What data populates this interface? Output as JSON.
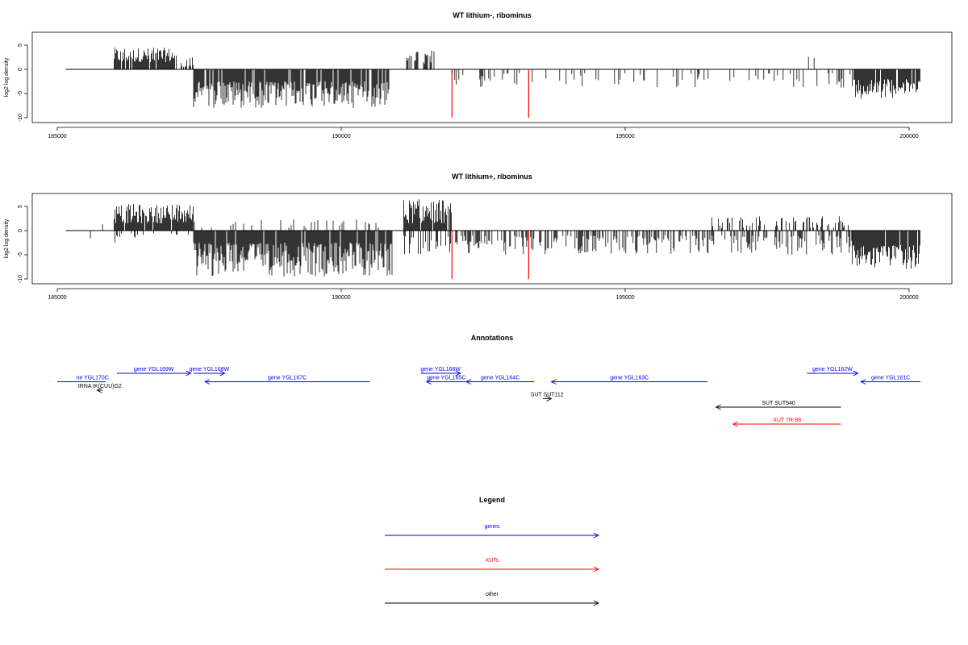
{
  "chart_data": [
    {
      "type": "bar",
      "title": "WT lithium-, ribominus",
      "ylabel": "log2 log density",
      "xlabel": "",
      "xlim": [
        185000,
        200000
      ],
      "ylim": [
        -10,
        5
      ],
      "x_ticks": [
        185000,
        190000,
        195000,
        200000
      ],
      "y_ticks": [
        5,
        0,
        -5,
        -10
      ],
      "highlight_color": "#ff0000",
      "highlights": [
        191950,
        193300
      ],
      "segments": [
        {
          "start": 186000,
          "end": 187100,
          "min": 1.5,
          "max": 4.5,
          "density": 0.85
        },
        {
          "start": 187150,
          "end": 187400,
          "min": 0.5,
          "max": 2.5,
          "density": 0.6
        },
        {
          "start": 187400,
          "end": 190850,
          "min": -8.0,
          "max": -2.5,
          "density": 0.9
        },
        {
          "start": 191150,
          "end": 191700,
          "min": 1.0,
          "max": 4.0,
          "density": 0.5
        },
        {
          "start": 191900,
          "end": 199000,
          "min": -4.0,
          "max": -0.8,
          "density": 0.12
        },
        {
          "start": 198100,
          "end": 199000,
          "min": 0.8,
          "max": 3.0,
          "density": 0.08
        },
        {
          "start": 199000,
          "end": 200200,
          "min": -6.0,
          "max": -2.0,
          "density": 0.9
        }
      ]
    },
    {
      "type": "bar",
      "title": "WT lithium+, ribominus",
      "ylabel": "log2 log density",
      "xlabel": "",
      "xlim": [
        185000,
        200000
      ],
      "ylim": [
        -10,
        5
      ],
      "x_ticks": [
        185000,
        190000,
        195000,
        200000
      ],
      "y_ticks": [
        5,
        0,
        -5,
        -10
      ],
      "highlight_color": "#ff0000",
      "highlights": [
        191950,
        193300
      ],
      "segments": [
        {
          "start": 185300,
          "end": 185950,
          "min": -2.0,
          "max": 1.5,
          "density": 0.06
        },
        {
          "start": 186000,
          "end": 187400,
          "min": 1.5,
          "max": 5.5,
          "density": 0.95
        },
        {
          "start": 186000,
          "end": 187400,
          "min": -2.5,
          "max": -0.5,
          "density": 0.2
        },
        {
          "start": 187400,
          "end": 190900,
          "min": -9.5,
          "max": -2.5,
          "density": 0.95
        },
        {
          "start": 187400,
          "end": 190900,
          "min": 0.5,
          "max": 2.5,
          "density": 0.15
        },
        {
          "start": 191100,
          "end": 191950,
          "min": 1.5,
          "max": 6.5,
          "density": 0.95
        },
        {
          "start": 191100,
          "end": 191950,
          "min": -5.0,
          "max": -1.0,
          "density": 0.5
        },
        {
          "start": 192000,
          "end": 199000,
          "min": -5.0,
          "max": -1.0,
          "density": 0.45
        },
        {
          "start": 196500,
          "end": 199000,
          "min": 0.5,
          "max": 3.0,
          "density": 0.3
        },
        {
          "start": 199000,
          "end": 200200,
          "min": -8.0,
          "max": -3.0,
          "density": 0.95
        }
      ]
    }
  ],
  "annotations": {
    "title": "Annotations",
    "genes_color": "#0000ff",
    "xut_color": "#ff0000",
    "other_color": "#000000",
    "features": [
      {
        "label": "ne YGL170C",
        "color": "#0000ff",
        "row": 1,
        "start": 185000,
        "end": 185850,
        "dir": "none",
        "label_pos": 185620
      },
      {
        "label": "gene YGL169W",
        "color": "#0000ff",
        "row": 0,
        "start": 186050,
        "end": 187350,
        "dir": "right"
      },
      {
        "label": "gene YGL168W",
        "color": "#0000ff",
        "row": 0,
        "start": 187400,
        "end": 187950,
        "dir": "right"
      },
      {
        "label": "gene YGL167C",
        "color": "#0000ff",
        "row": 1,
        "start": 187600,
        "end": 190500,
        "dir": "left"
      },
      {
        "label": "gene YGL166W",
        "color": "#0000ff",
        "row": 0,
        "start": 191400,
        "end": 192100,
        "dir": "right"
      },
      {
        "label": "gene YGL165C",
        "color": "#0000ff",
        "row": 1,
        "start": 191500,
        "end": 192200,
        "dir": "left"
      },
      {
        "label": "gene YGL164C",
        "color": "#0000ff",
        "row": 1,
        "start": 192200,
        "end": 193400,
        "dir": "left"
      },
      {
        "label": "gene YGL163C",
        "color": "#0000ff",
        "row": 1,
        "start": 193700,
        "end": 196450,
        "dir": "left"
      },
      {
        "label": "gene YGL162W",
        "color": "#0000ff",
        "row": 0,
        "start": 198200,
        "end": 199100,
        "dir": "right"
      },
      {
        "label": "gene YGL161C",
        "color": "#0000ff",
        "row": 1,
        "start": 199150,
        "end": 200200,
        "dir": "left"
      },
      {
        "label": "tRNA tK(CUU)G2",
        "color": "#000000",
        "row": 2,
        "start": 185700,
        "end": 185800,
        "dir": "left"
      },
      {
        "label": "SUT SUT112",
        "color": "#000000",
        "row": 3,
        "start": 193550,
        "end": 193700,
        "dir": "right"
      },
      {
        "label": "SUT SUT540",
        "color": "#000000",
        "row": 4,
        "start": 196600,
        "end": 198800,
        "dir": "left"
      },
      {
        "label": "XUT 7R-88",
        "color": "#ff0000",
        "row": 6,
        "start": 196900,
        "end": 198800,
        "dir": "left"
      }
    ]
  },
  "legend": {
    "title": "Legend",
    "items": [
      {
        "label": "genes",
        "color": "#0000ff"
      },
      {
        "label": "XUTs",
        "color": "#ff0000"
      },
      {
        "label": "other",
        "color": "#000000"
      }
    ]
  }
}
